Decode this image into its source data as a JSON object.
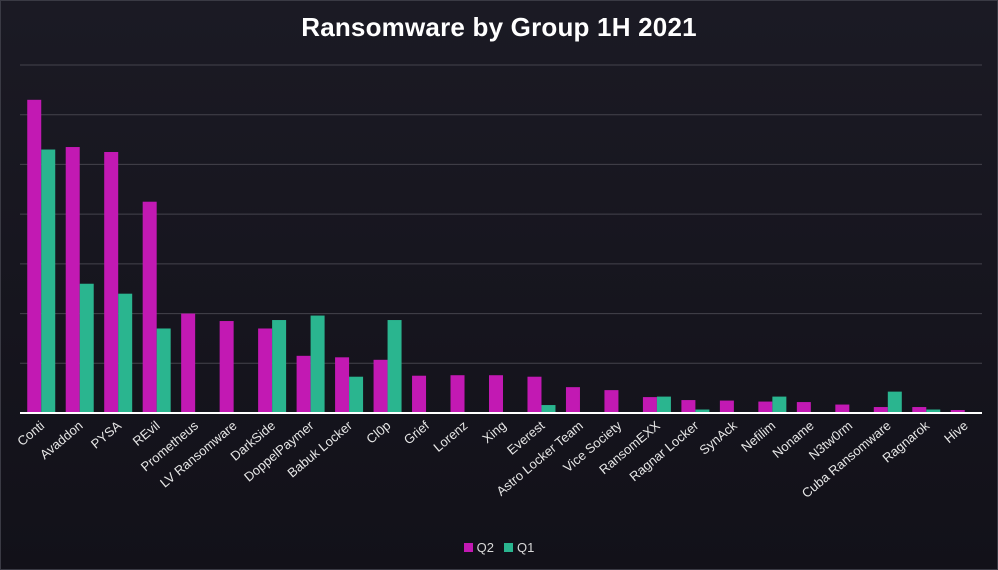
{
  "chart_data": {
    "type": "bar",
    "title": "Ransomware by Group 1H 2021",
    "categories": [
      "Conti",
      "Avaddon",
      "PYSA",
      "REvil",
      "Prometheus",
      "LV Ransomware",
      "DarkSide",
      "DoppelPaymer",
      "Babuk Locker",
      "Cl0p",
      "Grief",
      "Lorenz",
      "Xing",
      "Everest",
      "Astro Locker Team",
      "Vice Society",
      "RansomEXX",
      "Ragnar Locker",
      "SynAck",
      "Nefilim",
      "Noname",
      "N3tw0rm",
      "Cuba Ransomware",
      "Ragnarok",
      "Hive"
    ],
    "series": [
      {
        "name": "Q2",
        "color": "#c219b3",
        "values": [
          63,
          53.5,
          52.5,
          42.5,
          20,
          18.5,
          17,
          11.5,
          11.2,
          10.7,
          7.5,
          7.6,
          7.6,
          7.3,
          5.2,
          4.6,
          3.2,
          2.6,
          2.5,
          2.3,
          2.2,
          1.7,
          1.2,
          1.2,
          0.6
        ]
      },
      {
        "name": "Q1",
        "color": "#2ab58f",
        "values": [
          53,
          26,
          24,
          17,
          0,
          0,
          18.7,
          19.6,
          7.3,
          18.7,
          0,
          0,
          0,
          1.6,
          0,
          0,
          3.3,
          0.7,
          0,
          3.3,
          0,
          0,
          4.3,
          0.7,
          0
        ]
      }
    ],
    "ylim": [
      0,
      70
    ],
    "grid": true,
    "legend": "bottom-center",
    "axis_color": "#ffffff",
    "grid_color": "#44434c"
  }
}
